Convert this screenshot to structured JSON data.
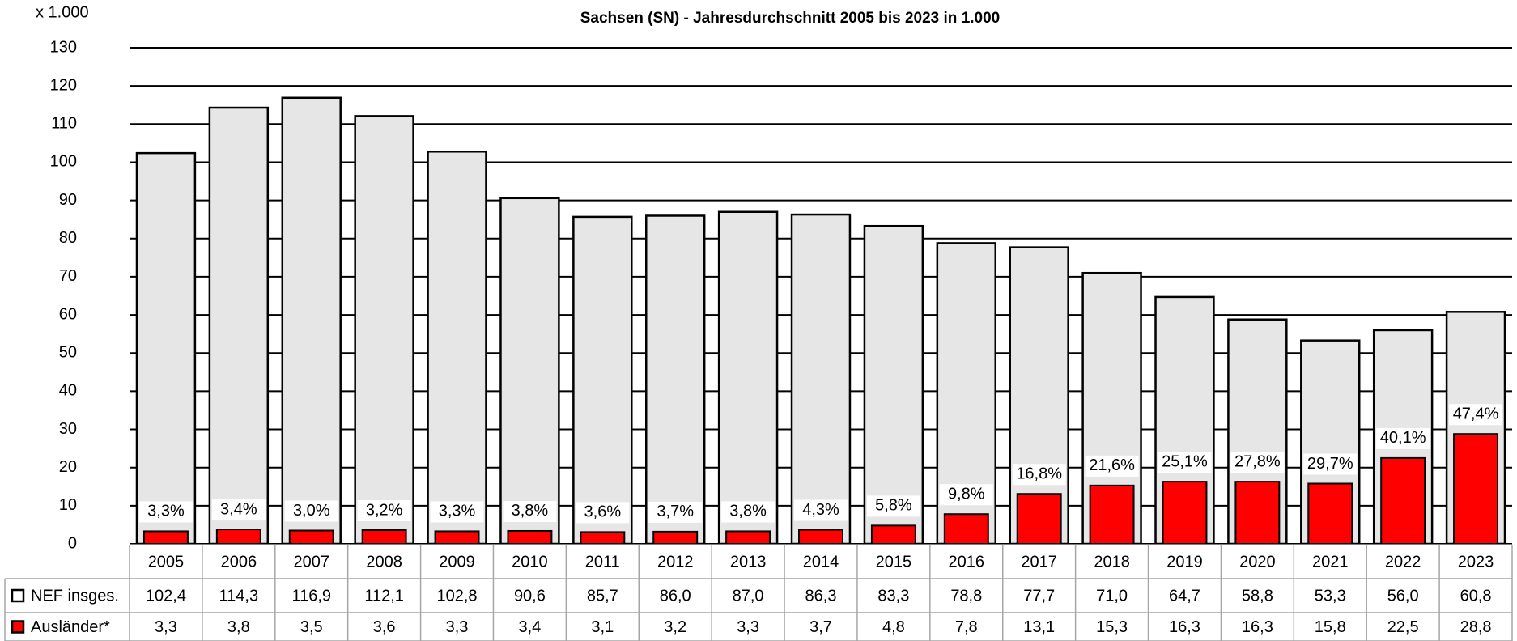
{
  "chart_data": {
    "type": "bar",
    "title": "Sachsen (SN) - Jahresdurchschnitt 2005 bis 2023 in 1.000",
    "y_label": "x 1.000",
    "categories": [
      "2005",
      "2006",
      "2007",
      "2008",
      "2009",
      "2010",
      "2011",
      "2012",
      "2013",
      "2014",
      "2015",
      "2016",
      "2017",
      "2018",
      "2019",
      "2020",
      "2021",
      "2022",
      "2023"
    ],
    "series": [
      {
        "name": "NEF insges.",
        "color": "#e6e6e6",
        "values": [
          102.4,
          114.3,
          116.9,
          112.1,
          102.8,
          90.6,
          85.7,
          86.0,
          87.0,
          86.3,
          83.3,
          78.8,
          77.7,
          71.0,
          64.7,
          58.8,
          53.3,
          56.0,
          60.8
        ],
        "value_labels": [
          "102,4",
          "114,3",
          "116,9",
          "112,1",
          "102,8",
          "90,6",
          "85,7",
          "86,0",
          "87,0",
          "86,3",
          "83,3",
          "78,8",
          "77,7",
          "71,0",
          "64,7",
          "58,8",
          "53,3",
          "56,0",
          "60,8"
        ]
      },
      {
        "name": "Ausländer*",
        "color": "#ff0000",
        "values": [
          3.3,
          3.8,
          3.5,
          3.6,
          3.3,
          3.4,
          3.1,
          3.2,
          3.3,
          3.7,
          4.8,
          7.8,
          13.1,
          15.3,
          16.3,
          16.3,
          15.8,
          22.5,
          28.8
        ],
        "value_labels": [
          "3,3",
          "3,8",
          "3,5",
          "3,6",
          "3,3",
          "3,4",
          "3,1",
          "3,2",
          "3,3",
          "3,7",
          "4,8",
          "7,8",
          "13,1",
          "15,3",
          "16,3",
          "16,3",
          "15,8",
          "22,5",
          "28,8"
        ]
      }
    ],
    "share_labels": [
      "3,3%",
      "3,4%",
      "3,0%",
      "3,2%",
      "3,3%",
      "3,8%",
      "3,6%",
      "3,7%",
      "3,8%",
      "4,3%",
      "5,8%",
      "9,8%",
      "16,8%",
      "21,6%",
      "25,1%",
      "27,8%",
      "29,7%",
      "40,1%",
      "47,4%"
    ],
    "ylim": [
      0,
      130
    ],
    "yticks": [
      0,
      10,
      20,
      30,
      40,
      50,
      60,
      70,
      80,
      90,
      100,
      110,
      120,
      130
    ],
    "grid": true
  }
}
